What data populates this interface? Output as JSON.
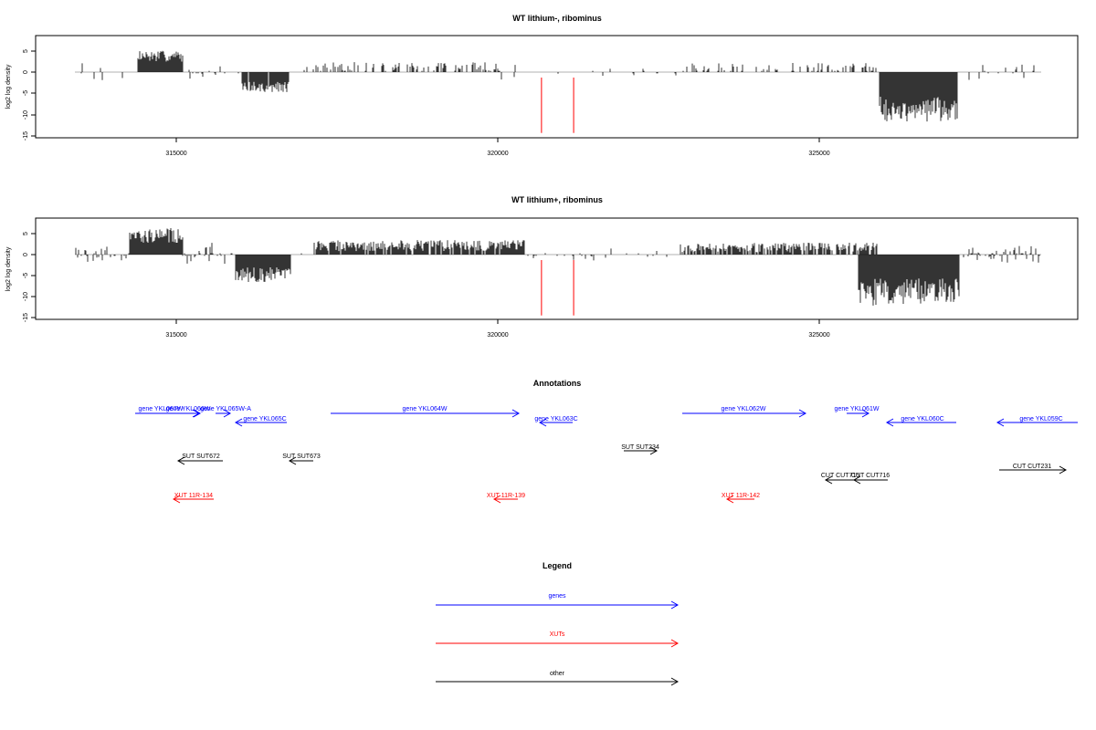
{
  "colors": {
    "gene": "#0000ff",
    "xut": "#ff0000",
    "other": "#000000",
    "red_marker": "#ff0000",
    "axis": "#000000",
    "baseline": "#999999"
  },
  "chart_data": [
    {
      "type": "bar",
      "title": "WT lithium-, ribominus",
      "ylabel": "log2 log density",
      "xlim": [
        312000,
        327800
      ],
      "ylim": [
        -15,
        8
      ],
      "yticks": [
        "-15",
        "-10",
        "-5",
        "0",
        "5"
      ],
      "xticks": [
        "315000",
        "320000",
        "325000"
      ],
      "red_markers": [
        320680,
        321180
      ],
      "red_marker_depth": -14.5
    },
    {
      "type": "bar",
      "title": "WT lithium+, ribominus",
      "ylabel": "log2 log density",
      "xlim": [
        312000,
        327800
      ],
      "ylim": [
        -15,
        8
      ],
      "yticks": [
        "-15",
        "-10",
        "-5",
        "0",
        "5"
      ],
      "xticks": [
        "315000",
        "320000",
        "325000"
      ],
      "red_markers": [
        320680,
        321180
      ],
      "red_marker_depth": -14.5
    }
  ],
  "annotations": {
    "title": "Annotations",
    "genes": [
      {
        "label": "gene YKL067W",
        "dir": "right"
      },
      {
        "label": "gene YKL066W",
        "dir": "right"
      },
      {
        "label": "gene YKL065W-A",
        "dir": "right"
      },
      {
        "label": "gene YKL065C",
        "dir": "left"
      },
      {
        "label": "gene YKL064W",
        "dir": "right"
      },
      {
        "label": "gene YKL063C",
        "dir": "left"
      },
      {
        "label": "gene YKL062W",
        "dir": "right"
      },
      {
        "label": "gene YKL061W",
        "dir": "right"
      },
      {
        "label": "gene YKL060C",
        "dir": "left"
      },
      {
        "label": "gene YKL059C",
        "dir": "left"
      }
    ],
    "other": [
      {
        "label": "SUT SUT672",
        "dir": "left"
      },
      {
        "label": "SUT SUT673",
        "dir": "left"
      },
      {
        "label": "SUT SUT234",
        "dir": "right"
      },
      {
        "label": "CUT CUT715",
        "dir": "left"
      },
      {
        "label": "CUT CUT716",
        "dir": "left"
      },
      {
        "label": "CUT CUT231",
        "dir": "right"
      }
    ],
    "xuts": [
      {
        "label": "XUT 11R-134",
        "dir": "left"
      },
      {
        "label": "XUT 11R-139",
        "dir": "left"
      },
      {
        "label": "XUT 11R-142",
        "dir": "left"
      }
    ]
  },
  "legend": {
    "title": "Legend",
    "items": [
      {
        "label": "genes",
        "color": "#0000ff"
      },
      {
        "label": "XUTs",
        "color": "#ff0000"
      },
      {
        "label": "other",
        "color": "#000000"
      }
    ]
  }
}
